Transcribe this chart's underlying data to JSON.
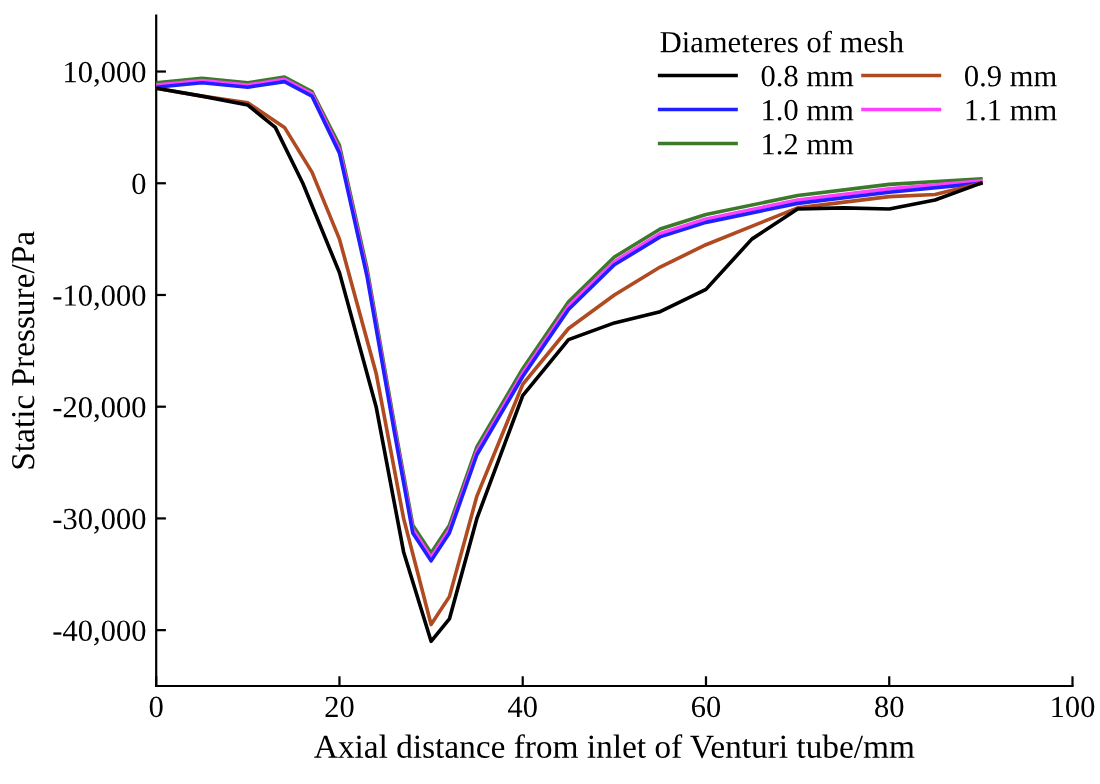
{
  "chart_data": {
    "type": "line",
    "xlabel": "Axial distance from inlet of Venturi tube/mm",
    "ylabel": "Static Pressure/Pa",
    "legend_title": "Diameteres of mesh",
    "legend": "top right",
    "grid": false,
    "marker": "none",
    "line_style": "solid",
    "xlim": [
      0,
      100
    ],
    "xticks": [
      0,
      20,
      40,
      60,
      80,
      100
    ],
    "ylim": [
      -45000,
      15000
    ],
    "yticks": [
      {
        "value": -40000,
        "label": "-40,000"
      },
      {
        "value": -30000,
        "label": "-30,000"
      },
      {
        "value": -20000,
        "label": "-20,000"
      },
      {
        "value": -10000,
        "label": "-10,000"
      },
      0,
      {
        "value": 10000,
        "label": "10,000"
      }
    ],
    "series": [
      {
        "name": "0.8 mm",
        "color": "#000000",
        "x": [
          0,
          5,
          10,
          13,
          16,
          20,
          24,
          27,
          30,
          32,
          35,
          40,
          45,
          50,
          55,
          60,
          65,
          70,
          75,
          80,
          85,
          90
        ],
        "values": [
          8500,
          7800,
          7000,
          5000,
          0,
          -8000,
          -20000,
          -33000,
          -41000,
          -39000,
          -30000,
          -19000,
          -14000,
          -12500,
          -11500,
          -9500,
          -5000,
          -2300,
          -2200,
          -2300,
          -1500,
          0
        ]
      },
      {
        "name": "0.9 mm",
        "color": "#b04a20",
        "x": [
          0,
          5,
          10,
          14,
          17,
          20,
          24,
          27,
          30,
          32,
          35,
          40,
          45,
          50,
          55,
          60,
          70,
          80,
          85,
          90
        ],
        "values": [
          8500,
          7800,
          7200,
          5000,
          1000,
          -5000,
          -17000,
          -30000,
          -39500,
          -37000,
          -28000,
          -18000,
          -13000,
          -10000,
          -7500,
          -5500,
          -2200,
          -1200,
          -1000,
          0
        ]
      },
      {
        "name": "1.0 mm",
        "color": "#2020ff",
        "x": [
          0,
          5,
          10,
          14,
          17,
          20,
          23,
          26,
          28,
          30,
          32,
          35,
          40,
          45,
          50,
          55,
          60,
          70,
          80,
          90
        ],
        "values": [
          8600,
          9000,
          8600,
          9100,
          7800,
          2700,
          -8300,
          -22300,
          -31300,
          -33800,
          -31300,
          -24300,
          -17300,
          -11300,
          -7300,
          -4800,
          -3500,
          -1800,
          -800,
          0
        ]
      },
      {
        "name": "1.1 mm",
        "color": "#ff40ff",
        "x": [
          0,
          5,
          10,
          14,
          17,
          20,
          23,
          26,
          28,
          30,
          32,
          35,
          40,
          45,
          50,
          55,
          60,
          70,
          80,
          90
        ],
        "values": [
          8800,
          9200,
          8800,
          9300,
          8000,
          3000,
          -8000,
          -22000,
          -31000,
          -33500,
          -31000,
          -24000,
          -17000,
          -11000,
          -7000,
          -4500,
          -3200,
          -1500,
          -500,
          200
        ]
      },
      {
        "name": "1.2 mm",
        "color": "#3a7a2a",
        "x": [
          0,
          5,
          10,
          14,
          17,
          20,
          23,
          26,
          28,
          30,
          32,
          35,
          40,
          45,
          50,
          55,
          60,
          70,
          80,
          90
        ],
        "values": [
          9000,
          9400,
          9000,
          9500,
          8200,
          3400,
          -7600,
          -21600,
          -30600,
          -33100,
          -30600,
          -23600,
          -16600,
          -10600,
          -6600,
          -4100,
          -2800,
          -1100,
          -100,
          400
        ]
      }
    ]
  }
}
